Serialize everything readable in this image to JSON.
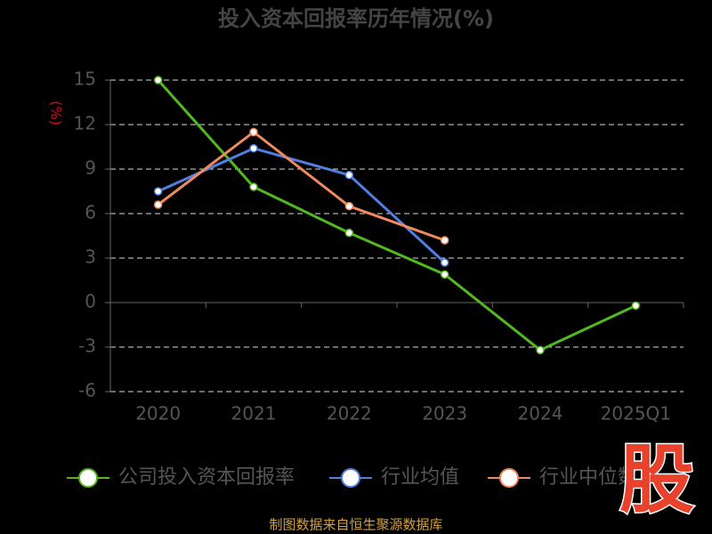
{
  "chart_data": {
    "type": "line",
    "title": "投入资本回报率历年情况(%)",
    "y_label": "(%)",
    "categories": [
      "2020",
      "2021",
      "2022",
      "2023",
      "2024",
      "2025Q1"
    ],
    "series": [
      {
        "name": "公司投入资本回报率",
        "color": "#52b81e",
        "values": [
          15.0,
          7.8,
          4.7,
          1.9,
          -3.2,
          -0.2
        ]
      },
      {
        "name": "行业均值",
        "color": "#4f7fe0",
        "values": [
          7.5,
          10.4,
          8.6,
          2.7,
          null,
          null
        ]
      },
      {
        "name": "行业中位数",
        "color": "#f08a5c",
        "values": [
          6.6,
          11.5,
          6.5,
          4.2,
          null,
          null
        ]
      }
    ],
    "ylim": [
      -6,
      15
    ],
    "yticks": [
      15,
      12,
      9,
      6,
      3,
      0,
      -3,
      -6
    ],
    "grid": true,
    "source": "制图数据来自恒生聚源数据库",
    "watermark": "股"
  }
}
